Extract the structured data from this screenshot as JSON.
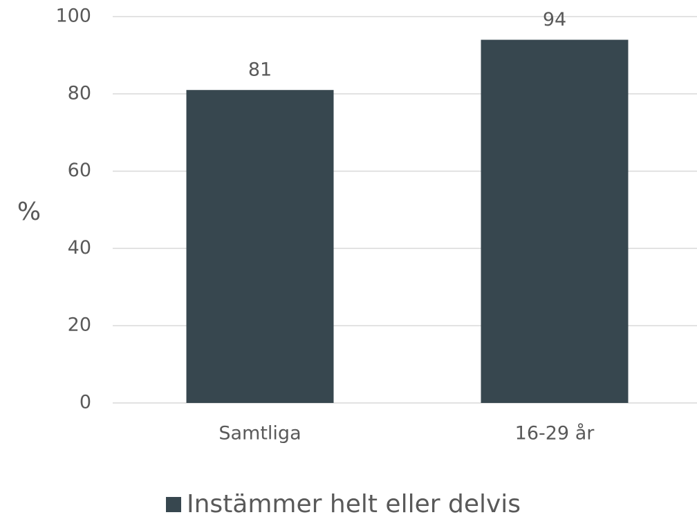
{
  "chart_data": {
    "type": "bar",
    "y_label": "%",
    "categories": [
      "Samtliga",
      "16-29 år"
    ],
    "series": [
      {
        "name": "Instämmer helt eller delvis",
        "color": "#37474f",
        "values": [
          81,
          94
        ]
      }
    ],
    "ylim": [
      0,
      100
    ],
    "yticks": [
      0,
      20,
      40,
      60,
      80,
      100
    ],
    "grid": true,
    "legend": "bottom"
  }
}
